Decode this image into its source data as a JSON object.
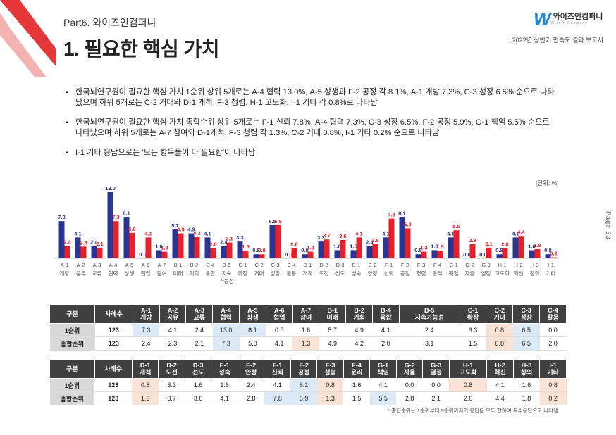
{
  "header": {
    "part": "Part6. 와이즈인컴퍼니",
    "title": "1. 필요한 핵심 가치",
    "logo_mark": "W",
    "logo_text": "와이즈인컴퍼니",
    "logo_sub": "WiseIn Company",
    "report": "2022년 상반기 만족도 결과 보고서",
    "page": "Page 33"
  },
  "bullets": [
    "한국뇌연구원이 필요한 핵심 가치 1순위 상위 5개로는 A-4 협력 13.0%, A-5 상생과 F-2 공정 각 8.1%, A-1 개방 7.3%, C-3 성장 6.5% 순으로 나타났으며 하위 5개로는 C-2 거대와 D-1 개척, F-3 청렴, H-1 고도화, I-1 기타 각 0.8%로 나타남",
    "한국뇌연구원이 필요한 핵심 가치 종합순위 상위 5개로는 F-1 신뢰 7.8%, A-4 협력 7.3%, C-3 성장 6.5%, F-2 공정 5.9%, G-1 책임 5.5% 순으로 나타났으며 하위 5개로는 A-7 참여와 D-1개척, F-3 청렴 각 1.3%, C-2 거대 0.8%, I-1 기타 0.2% 순으로 나타남",
    "I-1 기타 응답으로는 '모든 항목들이 다 필요함'이 나타남"
  ],
  "chart_data": {
    "type": "bar",
    "unit_label": "[단위: %]",
    "codes": [
      "A-1",
      "A-2",
      "A-3",
      "A-4",
      "A-5",
      "A-6",
      "A-7",
      "B-1",
      "B-2",
      "B-4",
      "B-5",
      "C-1",
      "C-2",
      "C-3",
      "C-4",
      "D-1",
      "D-2",
      "D-3",
      "E-1",
      "E-2",
      "F-1",
      "F-2",
      "F-3",
      "F-4",
      "G-1",
      "G-2",
      "G-3",
      "H-1",
      "H-2",
      "H-3",
      "I-1"
    ],
    "names": [
      "개방",
      "공유",
      "교류",
      "협력",
      "상생",
      "협업",
      "참여",
      "미래",
      "기회",
      "융합",
      "지속 가능성",
      "확장",
      "거대",
      "성장",
      "활용",
      "개척",
      "도전",
      "선도",
      "성숙",
      "안정",
      "신뢰",
      "공정",
      "청렴",
      "윤리",
      "책임",
      "자율",
      "열정",
      "고도화",
      "혁신",
      "창의",
      "기타"
    ],
    "series": [
      {
        "name": "1순위",
        "color": "#283593",
        "values": [
          7.3,
          4.1,
          2.4,
          13.0,
          8.1,
          0.0,
          1.6,
          5.7,
          4.9,
          4.1,
          2.4,
          3.3,
          0.8,
          6.5,
          0.0,
          0.8,
          3.3,
          1.6,
          1.6,
          2.4,
          4.1,
          8.1,
          0.8,
          1.6,
          4.1,
          0.0,
          0.0,
          0.8,
          4.1,
          1.6,
          0.8
        ]
      },
      {
        "name": "종합순위",
        "color": "#e8202a",
        "values": [
          2.4,
          2.3,
          2.1,
          7.3,
          5.0,
          4.1,
          1.3,
          4.9,
          4.2,
          2.0,
          3.1,
          1.5,
          0.8,
          6.5,
          2.0,
          1.3,
          3.7,
          3.6,
          4.1,
          2.8,
          7.8,
          5.9,
          1.3,
          1.5,
          5.5,
          2.8,
          2.1,
          2.0,
          4.4,
          1.8,
          0.2
        ]
      }
    ],
    "ylim": [
      0,
      13
    ]
  },
  "table1": {
    "headers": [
      "구분",
      "사례수",
      "A-1 개방",
      "A-2 공유",
      "A-3 교류",
      "A-4 협력",
      "A-5 상생",
      "A-6 협업",
      "A-7 참여",
      "B-1 미래",
      "B-2 기회",
      "B-4 융합",
      "B-5 지속가능성",
      "C-1 확장",
      "C-2 거대",
      "C-3 성장",
      "C-4 활용"
    ],
    "rows": [
      {
        "label": "1순위",
        "n": "123",
        "vals": [
          "7.3",
          "4.1",
          "2.4",
          "13.0",
          "8.1",
          "0.0",
          "1.6",
          "5.7",
          "4.9",
          "4.1",
          "2.4",
          "3.3",
          "0.8",
          "6.5",
          "0.0"
        ],
        "hl": [
          "b",
          "",
          "",
          "b",
          "b",
          "",
          "",
          "",
          "",
          "",
          "",
          "",
          "o",
          "b",
          ""
        ]
      },
      {
        "label": "종합순위",
        "n": "123",
        "vals": [
          "2.4",
          "2.3",
          "2.1",
          "7.3",
          "5.0",
          "4.1",
          "1.3",
          "4.9",
          "4.2",
          "2.0",
          "3.1",
          "1.5",
          "0.8",
          "6.5",
          "2.0"
        ],
        "hl": [
          "",
          "",
          "",
          "b",
          "",
          "",
          "o",
          "",
          "",
          "",
          "",
          "",
          "o",
          "b",
          ""
        ]
      }
    ]
  },
  "table2": {
    "headers": [
      "구분",
      "사례수",
      "D-1 개척",
      "D-2 도전",
      "D-3 선도",
      "E-1 성숙",
      "E-2 안정",
      "F-1 신뢰",
      "F-2 공정",
      "F-3 청렴",
      "F-4 윤리",
      "G-1 책임",
      "G-2 자율",
      "G-3 열정",
      "H-1 고도화",
      "H-2 혁신",
      "H-3 창의",
      "I-1 기타"
    ],
    "rows": [
      {
        "label": "1순위",
        "n": "123",
        "vals": [
          "0.8",
          "3.3",
          "1.6",
          "1.6",
          "2.4",
          "4.1",
          "8.1",
          "0.8",
          "1.6",
          "4.1",
          "0.0",
          "0.0",
          "0.8",
          "4.1",
          "1.6",
          "0.8"
        ],
        "hl": [
          "o",
          "",
          "",
          "",
          "",
          "",
          "b",
          "o",
          "",
          "",
          "",
          "",
          "o",
          "",
          "",
          "o"
        ]
      },
      {
        "label": "종합순위",
        "n": "123",
        "vals": [
          "1.3",
          "3.7",
          "3.6",
          "4.1",
          "2.8",
          "7.8",
          "5.9",
          "1.3",
          "1.5",
          "5.5",
          "2.8",
          "2.1",
          "2.0",
          "4.4",
          "1.8",
          "0.2"
        ],
        "hl": [
          "o",
          "",
          "",
          "",
          "",
          "b",
          "b",
          "o",
          "",
          "b",
          "",
          "",
          "",
          "",
          "",
          "o"
        ]
      }
    ]
  },
  "note": "* 종합순위는 1순위부터 5순위까지의 응답을 모두 합하여 복수응답으로 나타냄"
}
